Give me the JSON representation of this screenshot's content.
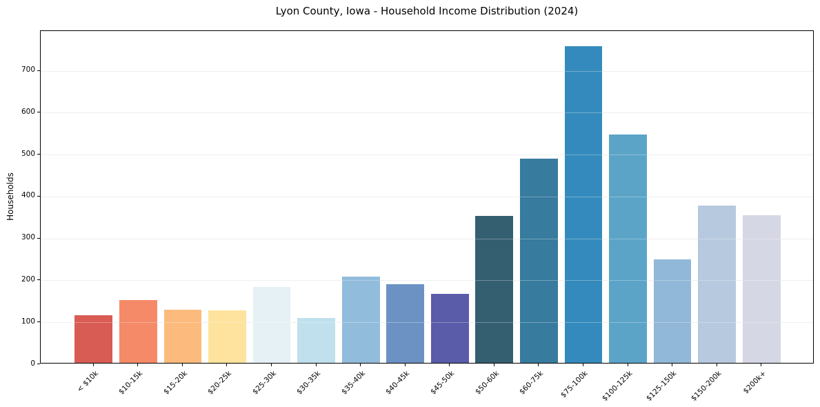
{
  "chart_data": {
    "type": "bar",
    "title": "Lyon County, Iowa - Household Income Distribution (2024)",
    "xlabel": "",
    "ylabel": "Households",
    "categories": [
      "< $10k",
      "$10-15k",
      "$15-20k",
      "$20-25k",
      "$25-30k",
      "$30-35k",
      "$35-40k",
      "$40-45k",
      "$45-50k",
      "$50-60k",
      "$60-75k",
      "$75-100k",
      "$100-125k",
      "$125-150k",
      "$150-200k",
      "$200k+"
    ],
    "values": [
      114,
      150,
      127,
      125,
      181,
      107,
      205,
      187,
      164,
      350,
      487,
      756,
      545,
      247,
      376,
      352
    ],
    "bar_colors": [
      "#d85c54",
      "#f58a68",
      "#fcba7c",
      "#fde39d",
      "#e6f1f5",
      "#bfe0ec",
      "#92bcdc",
      "#6c92c4",
      "#5a5caa",
      "#345f70",
      "#377b9e",
      "#348abc",
      "#5ba4c8",
      "#91b8d8",
      "#b7c9de",
      "#d6d7e4"
    ],
    "ylim": [
      0,
      795
    ],
    "yticks": [
      0,
      100,
      200,
      300,
      400,
      500,
      600,
      700
    ],
    "grid": "horizontal-light",
    "legend": "none",
    "x_tick_rotation_deg": 45
  }
}
